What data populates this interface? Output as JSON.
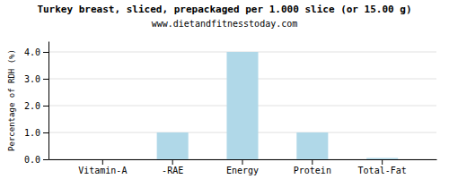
{
  "chart_data": {
    "type": "bar",
    "title": "Turkey breast, sliced, prepackaged per 1.000 slice (or 15.00 g)",
    "subtitle": "www.dietandfitnesstoday.com",
    "categories": [
      "Vitamin-A",
      "-RAE",
      "Energy",
      "Protein",
      "Total-Fat"
    ],
    "values": [
      0.0,
      1.0,
      4.0,
      1.0,
      0.05
    ],
    "color": "#b0d8e8",
    "ylabel": "Percentage of RDH (%)",
    "ylim": [
      0,
      4.4
    ],
    "yticks": [
      {
        "value": 0.0,
        "label": "0.0"
      },
      {
        "value": 1.0,
        "label": "1.0"
      },
      {
        "value": 2.0,
        "label": "2.0"
      },
      {
        "value": 3.0,
        "label": "3.0"
      },
      {
        "value": 4.0,
        "label": "4.0"
      }
    ],
    "grid": true
  }
}
